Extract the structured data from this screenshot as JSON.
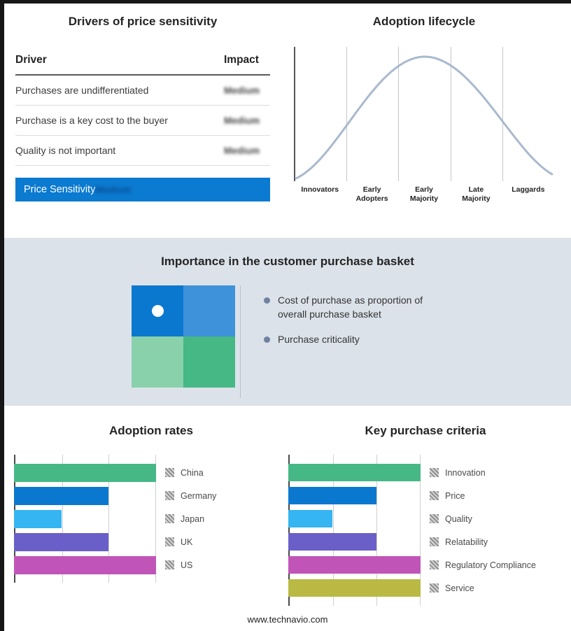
{
  "frame": {
    "footer": "www.technavio.com"
  },
  "drivers_panel": {
    "title": "Drivers of price sensitivity",
    "columns": {
      "driver": "Driver",
      "impact": "Impact"
    },
    "rows": [
      {
        "driver": "Purchases are undifferentiated",
        "impact": "Medium"
      },
      {
        "driver": "Purchase is a key cost to the buyer",
        "impact": "Medium"
      },
      {
        "driver": "Quality is not important",
        "impact": "Medium"
      }
    ],
    "summary": {
      "label": "Price Sensitivity",
      "impact": "Medium"
    },
    "accent_color": "#0b7ad1"
  },
  "lifecycle_panel": {
    "title": "Adoption lifecycle",
    "stages": [
      "Innovators",
      "Early Adopters",
      "Early Majority",
      "Late Majority",
      "Laggards"
    ],
    "curve_color": "#a9b9ce"
  },
  "basket_panel": {
    "title": "Importance in the customer purchase basket",
    "bullets": [
      "Cost of purchase as proportion of overall purchase basket",
      "Purchase criticality"
    ],
    "quadrant_colors": {
      "top_left": "#0b78d0",
      "top_right": "#3e92d9",
      "bottom_left": "#89d1ab",
      "bottom_right": "#46b885"
    },
    "background": "#dbe2e9"
  },
  "chart_data": [
    {
      "type": "bar",
      "title": "Adoption rates",
      "orientation": "horizontal",
      "categories": [
        "China",
        "Germany",
        "Japan",
        "UK",
        "US"
      ],
      "values": [
        3,
        2,
        1,
        2,
        3
      ],
      "xmax": 3,
      "colors": [
        "#46b885",
        "#0b78d0",
        "#35b5f2",
        "#6a5fc8",
        "#c055b7"
      ],
      "legend_position": "right",
      "grid": true
    },
    {
      "type": "bar",
      "title": "Key purchase criteria",
      "orientation": "horizontal",
      "categories": [
        "Innovation",
        "Price",
        "Quality",
        "Relatability",
        "Regulatory Compliance",
        "Service"
      ],
      "values": [
        3,
        2,
        1,
        2,
        3,
        3
      ],
      "xmax": 3,
      "colors": [
        "#46b885",
        "#0b78d0",
        "#35b5f2",
        "#6a5fc8",
        "#c055b7",
        "#b9b944"
      ],
      "legend_position": "right",
      "grid": true
    }
  ]
}
